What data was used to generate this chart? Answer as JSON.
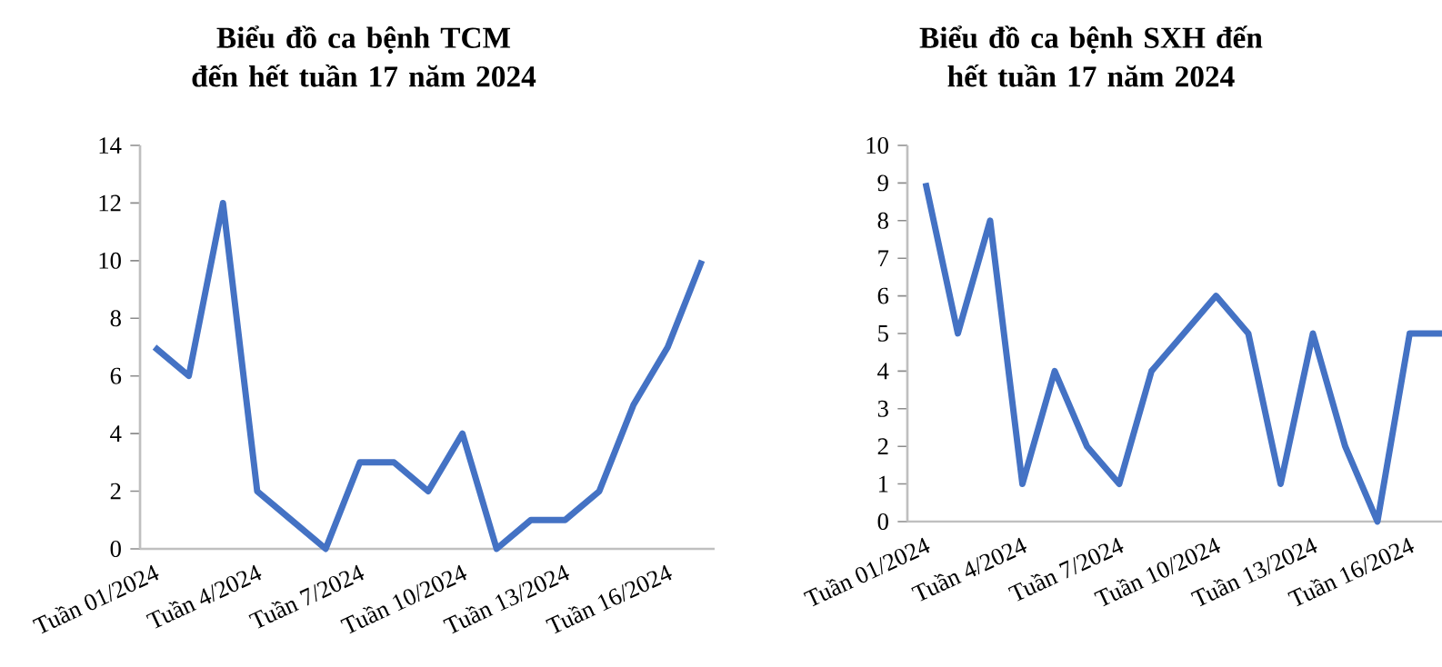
{
  "chart_data": [
    {
      "type": "line",
      "title": "Biểu đồ ca bệnh TCM đến hết tuần 17 năm 2024",
      "categories": [
        "Tuần 01/2024",
        null,
        null,
        "Tuần 4/2024",
        null,
        null,
        "Tuần 7/2024",
        null,
        null,
        "Tuần 10/2024",
        null,
        null,
        "Tuần 13/2024",
        null,
        null,
        "Tuần 16/2024",
        null
      ],
      "values": [
        7,
        6,
        12,
        2,
        1,
        0,
        3,
        3,
        2,
        4,
        0,
        1,
        1,
        2,
        5,
        7,
        10
      ],
      "color": "#4472c4",
      "ylim": [
        0,
        14
      ],
      "yticks": [
        0,
        2,
        4,
        6,
        8,
        10,
        12,
        14
      ],
      "grid": false,
      "marker": "none"
    },
    {
      "type": "line",
      "title": "Biểu đồ ca bệnh SXH đến hết tuần 17 năm 2024",
      "categories": [
        "Tuần 01/2024",
        null,
        null,
        "Tuần 4/2024",
        null,
        null,
        "Tuần 7/2024",
        null,
        null,
        "Tuần 10/2024",
        null,
        null,
        "Tuần 13/2024",
        null,
        null,
        "Tuần 16/2024",
        null
      ],
      "values": [
        9,
        5,
        8,
        1,
        4,
        2,
        1,
        4,
        5,
        6,
        5,
        1,
        5,
        2,
        0,
        5,
        5
      ],
      "color": "#4472c4",
      "ylim": [
        0,
        10
      ],
      "yticks": [
        0,
        1,
        2,
        3,
        4,
        5,
        6,
        7,
        8,
        9,
        10
      ],
      "grid": false,
      "marker": "none"
    }
  ]
}
